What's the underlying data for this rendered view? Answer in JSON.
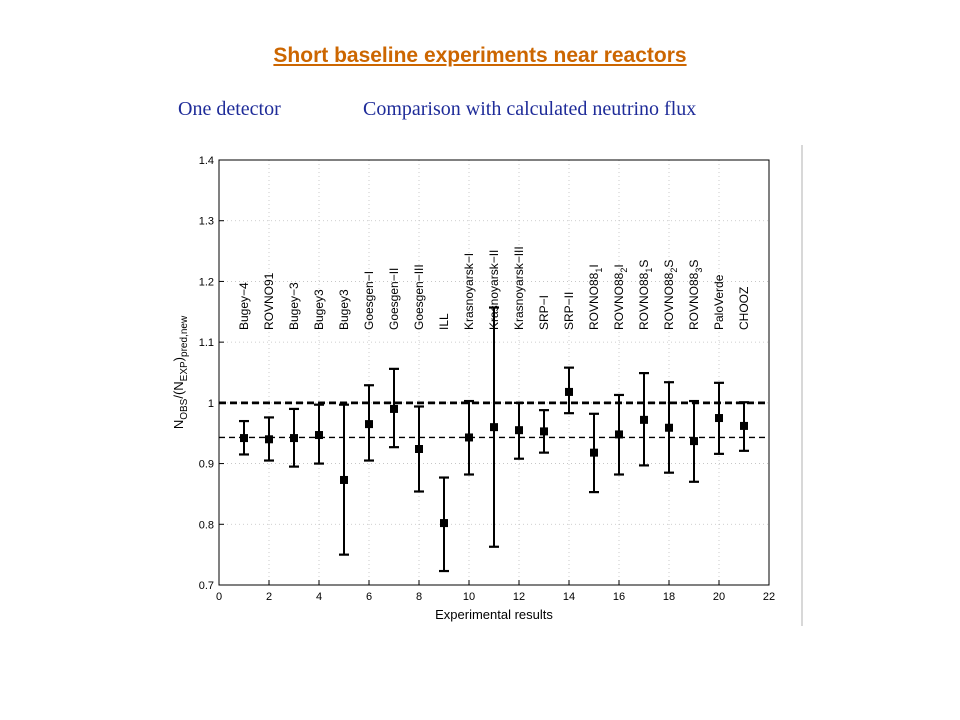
{
  "slide": {
    "title": "Short baseline experiments near reactors",
    "subtitle_left": "One detector",
    "subtitle_right": "Comparison with calculated neutrino flux"
  },
  "colors": {
    "title": "#cc6600",
    "subtitle": "#1f2c99",
    "marks": "#000000"
  },
  "chart_data": {
    "type": "scatter",
    "error_bars": true,
    "xlabel": "Experimental results",
    "ylabel": "N_OBS/(N_EXP)_pred,new",
    "xlim": [
      0,
      22
    ],
    "ylim": [
      0.7,
      1.4
    ],
    "xticks": [
      0,
      2,
      4,
      6,
      8,
      10,
      12,
      14,
      16,
      18,
      20,
      22
    ],
    "yticks": [
      0.7,
      0.8,
      0.9,
      1.0,
      1.1,
      1.2,
      1.3,
      1.4
    ],
    "grid": "dotted",
    "reference_lines": [
      {
        "y": 1.0,
        "style": "thick-dashed"
      },
      {
        "y": 0.943,
        "style": "dashed"
      }
    ],
    "points": [
      {
        "x": 1,
        "label": "Bugey−4",
        "y": 0.942,
        "low": 0.915,
        "high": 0.97
      },
      {
        "x": 2,
        "label": "ROVNO91",
        "y": 0.94,
        "low": 0.905,
        "high": 0.976
      },
      {
        "x": 3,
        "label": "Bugey−3",
        "y": 0.942,
        "low": 0.895,
        "high": 0.99
      },
      {
        "x": 4,
        "label": "Bugey3",
        "y": 0.947,
        "low": 0.9,
        "high": 0.997
      },
      {
        "x": 5,
        "label": "Bugey3",
        "y": 0.873,
        "low": 0.75,
        "high": 0.997
      },
      {
        "x": 6,
        "label": "Goesgen−I",
        "y": 0.965,
        "low": 0.905,
        "high": 1.029
      },
      {
        "x": 7,
        "label": "Goesgen−II",
        "y": 0.99,
        "low": 0.927,
        "high": 1.056
      },
      {
        "x": 8,
        "label": "Goesgen−III",
        "y": 0.924,
        "low": 0.854,
        "high": 0.994
      },
      {
        "x": 9,
        "label": "ILL",
        "y": 0.802,
        "low": 0.723,
        "high": 0.877
      },
      {
        "x": 10,
        "label": "Krasnoyarsk−I",
        "y": 0.943,
        "low": 0.882,
        "high": 1.003
      },
      {
        "x": 11,
        "label": "Krasnoyarsk−II",
        "y": 0.96,
        "low": 0.763,
        "high": 1.157
      },
      {
        "x": 12,
        "label": "Krasnoyarsk−III",
        "y": 0.955,
        "low": 0.908,
        "high": 1.0
      },
      {
        "x": 13,
        "label": "SRP−I",
        "y": 0.953,
        "low": 0.918,
        "high": 0.988
      },
      {
        "x": 14,
        "label": "SRP−II",
        "y": 1.018,
        "low": 0.983,
        "high": 1.058
      },
      {
        "x": 15,
        "label": "ROVNO88",
        "sub": "1",
        "suffix": "I",
        "y": 0.918,
        "low": 0.853,
        "high": 0.982
      },
      {
        "x": 16,
        "label": "ROVNO88",
        "sub": "2",
        "suffix": "I",
        "y": 0.948,
        "low": 0.882,
        "high": 1.013
      },
      {
        "x": 17,
        "label": "ROVNO88",
        "sub": "1",
        "suffix": "S",
        "y": 0.972,
        "low": 0.897,
        "high": 1.049
      },
      {
        "x": 18,
        "label": "ROVNO88",
        "sub": "2",
        "suffix": "S",
        "y": 0.959,
        "low": 0.885,
        "high": 1.034
      },
      {
        "x": 19,
        "label": "ROVNO88",
        "sub": "3",
        "suffix": "S",
        "y": 0.937,
        "low": 0.87,
        "high": 1.003
      },
      {
        "x": 20,
        "label": "PaloVerde",
        "y": 0.975,
        "low": 0.916,
        "high": 1.033
      },
      {
        "x": 21,
        "label": "CHOOZ",
        "y": 0.962,
        "low": 0.921,
        "high": 1.001
      }
    ]
  }
}
